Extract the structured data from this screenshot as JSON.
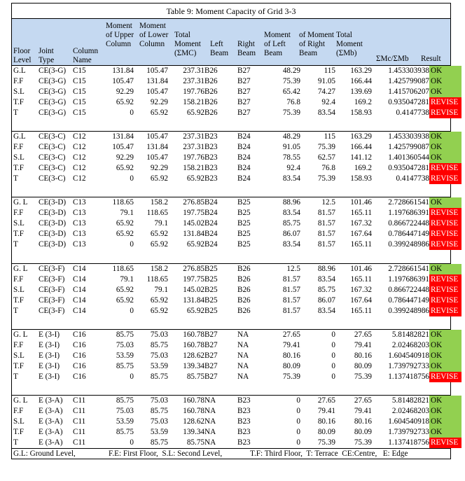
{
  "title": "Table 9: Moment Capacity of Grid 3-3",
  "headers": {
    "floor_level": "Floor\nLevel",
    "joint_type": "Joint\nType",
    "column_name": "Column\nName",
    "moment_upper": "Moment\nof Upper\nColumn",
    "moment_lower": "Moment\nof Lower\nColumn",
    "total_moment_mc": "Total\nMoment\n(ΣMC)",
    "left_beam": "Left\nBeam",
    "right_beam": "Right\nBeam",
    "moment_left_beam": "Moment\nof Left\nBeam",
    "moment_right_beam": "of Moment\nof Right\nBeam",
    "total_moment_mb": "Total\nMoment\n(ΣMb)",
    "ratio": "ΣMc/ΣMb",
    "result": "Result"
  },
  "groups": [
    [
      [
        "G.L",
        "CE(3-G)",
        "C15",
        "131.84",
        "105.47",
        "237.31",
        "B26",
        "B27",
        "48.29",
        "115",
        "163.29",
        "1.453303938",
        "OK"
      ],
      [
        "F.F",
        "CE(3-G)",
        "C15",
        "105.47",
        "131.84",
        "237.31",
        "B26",
        "B27",
        "75.39",
        "91.05",
        "166.44",
        "1.425799087",
        "OK"
      ],
      [
        "S.L",
        "CE(3-G)",
        "C15",
        "92.29",
        "105.47",
        "197.76",
        "B26",
        "B27",
        "65.42",
        "74.27",
        "139.69",
        "1.415706207",
        "OK"
      ],
      [
        "T.F",
        "CE(3-G)",
        "C15",
        "65.92",
        "92.29",
        "158.21",
        "B26",
        "B27",
        "76.8",
        "92.4",
        "169.2",
        "0.935047281",
        "REVISE"
      ],
      [
        "T",
        "CE(3-G)",
        "C15",
        "0",
        "65.92",
        "65.92",
        "B26",
        "B27",
        "75.39",
        "83.54",
        "158.93",
        "0.4147738",
        "REVISE"
      ]
    ],
    [
      [
        "G.L",
        "CE(3-C)",
        "C12",
        "131.84",
        "105.47",
        "237.31",
        "B23",
        "B24",
        "48.29",
        "115",
        "163.29",
        "1.453303938",
        "OK"
      ],
      [
        "F.F",
        "CE(3-C)",
        "C12",
        "105.47",
        "131.84",
        "237.31",
        "B23",
        "B24",
        "91.05",
        "75.39",
        "166.44",
        "1.425799087",
        "OK"
      ],
      [
        "S.L",
        "CE(3-C)",
        "C12",
        "92.29",
        "105.47",
        "197.76",
        "B23",
        "B24",
        "78.55",
        "62.57",
        "141.12",
        "1.401360544",
        "OK"
      ],
      [
        "T.F",
        "CE(3-C)",
        "C12",
        "65.92",
        "92.29",
        "158.21",
        "B23",
        "B24",
        "92.4",
        "76.8",
        "169.2",
        "0.935047281",
        "REVISE"
      ],
      [
        "T",
        "CE(3-C)",
        "C12",
        "0",
        "65.92",
        "65.92",
        "B23",
        "B24",
        "83.54",
        "75.39",
        "158.93",
        "0.4147738",
        "REVISE"
      ]
    ],
    [
      [
        "G. L",
        "CE(3-D)",
        "C13",
        "118.65",
        "158.2",
        "276.85",
        "B24",
        "B25",
        "88.96",
        "12.5",
        "101.46",
        "2.728661541",
        "OK"
      ],
      [
        "F.F",
        "CE(3-D)",
        "C13",
        "79.1",
        "118.65",
        "197.75",
        "B24",
        "B25",
        "83.54",
        "81.57",
        "165.11",
        "1.197686391",
        "REVISE"
      ],
      [
        "S.L",
        "CE(3-D)",
        "C13",
        "65.92",
        "79.1",
        "145.02",
        "B24",
        "B25",
        "85.75",
        "81.57",
        "167.32",
        "0.866722448",
        "REVISE"
      ],
      [
        "T.F",
        "CE(3-D)",
        "C13",
        "65.92",
        "65.92",
        "131.84",
        "B24",
        "B25",
        "86.07",
        "81.57",
        "167.64",
        "0.786447149",
        "REVISE"
      ],
      [
        "T",
        "CE(3-D)",
        "C13",
        "0",
        "65.92",
        "65.92",
        "B24",
        "B25",
        "83.54",
        "81.57",
        "165.11",
        "0.399248986",
        "REVISE"
      ]
    ],
    [
      [
        "G. L",
        "CE(3-F)",
        "C14",
        "118.65",
        "158.2",
        "276.85",
        "B25",
        "B26",
        "12.5",
        "88.96",
        "101.46",
        "2.728661541",
        "OK"
      ],
      [
        "F.F",
        "CE(3-F)",
        "C14",
        "79.1",
        "118.65",
        "197.75",
        "B25",
        "B26",
        "81.57",
        "83.54",
        "165.11",
        "1.197686391",
        "REVISE"
      ],
      [
        "S.L",
        "CE(3-F)",
        "C14",
        "65.92",
        "79.1",
        "145.02",
        "B25",
        "B26",
        "81.57",
        "85.75",
        "167.32",
        "0.866722448",
        "REVISE"
      ],
      [
        "T.F",
        "CE(3-F)",
        "C14",
        "65.92",
        "65.92",
        "131.84",
        "B25",
        "B26",
        "81.57",
        "86.07",
        "167.64",
        "0.786447149",
        "REVISE"
      ],
      [
        "T",
        "CE(3-F)",
        "C14",
        "0",
        "65.92",
        "65.92",
        "B25",
        "B26",
        "81.57",
        "83.54",
        "165.11",
        "0.399248986",
        "REVISE"
      ]
    ],
    [
      [
        "G. L",
        "E (3-I)",
        "C16",
        "85.75",
        "75.03",
        "160.78",
        "B27",
        "NA",
        "27.65",
        "0",
        "27.65",
        "5.81482821",
        "OK"
      ],
      [
        "F.F",
        "E (3-I)",
        "C16",
        "75.03",
        "85.75",
        "160.78",
        "B27",
        "NA",
        "79.41",
        "0",
        "79.41",
        "2.02468203",
        "OK"
      ],
      [
        "S.L",
        "E (3-I)",
        "C16",
        "53.59",
        "75.03",
        "128.62",
        "B27",
        "NA",
        "80.16",
        "0",
        "80.16",
        "1.604540918",
        "OK"
      ],
      [
        "T.F",
        "E (3-I)",
        "C16",
        "85.75",
        "53.59",
        "139.34",
        "B27",
        "NA",
        "80.09",
        "0",
        "80.09",
        "1.739792733",
        "OK"
      ],
      [
        "T",
        "E (3-I)",
        "C16",
        "0",
        "85.75",
        "85.75",
        "B27",
        "NA",
        "75.39",
        "0",
        "75.39",
        "1.137418756",
        "REVISE"
      ]
    ],
    [
      [
        "G. L",
        "E (3-A)",
        "C11",
        "85.75",
        "75.03",
        "160.78",
        "NA",
        "B23",
        "0",
        "27.65",
        "27.65",
        "5.81482821",
        "OK"
      ],
      [
        "F.F",
        "E (3-A)",
        "C11",
        "75.03",
        "85.75",
        "160.78",
        "NA",
        "B23",
        "0",
        "79.41",
        "79.41",
        "2.02468203",
        "OK"
      ],
      [
        "S.L",
        "E (3-A)",
        "C11",
        "53.59",
        "75.03",
        "128.62",
        "NA",
        "B23",
        "0",
        "80.16",
        "80.16",
        "1.604540918",
        "OK"
      ],
      [
        "T.F",
        "E (3-A)",
        "C11",
        "85.75",
        "53.59",
        "139.34",
        "NA",
        "B23",
        "0",
        "80.09",
        "80.09",
        "1.739792733",
        "OK"
      ],
      [
        "T",
        "E (3-A)",
        "C11",
        "0",
        "85.75",
        "85.75",
        "NA",
        "B23",
        "0",
        "75.39",
        "75.39",
        "1.137418756",
        "REVISE"
      ]
    ]
  ],
  "footer": {
    "gl": "G.L: Ground Level,",
    "ff_sl": "F.E: First Floor,  S.L: Second Level,",
    "tf": "T.F: Third Floor,  T: Terrace  CE:Centre,   E: Edge"
  },
  "colors": {
    "header_bg": "#c5d9f1",
    "ok": "#92d050",
    "revise": "#ff0000"
  }
}
